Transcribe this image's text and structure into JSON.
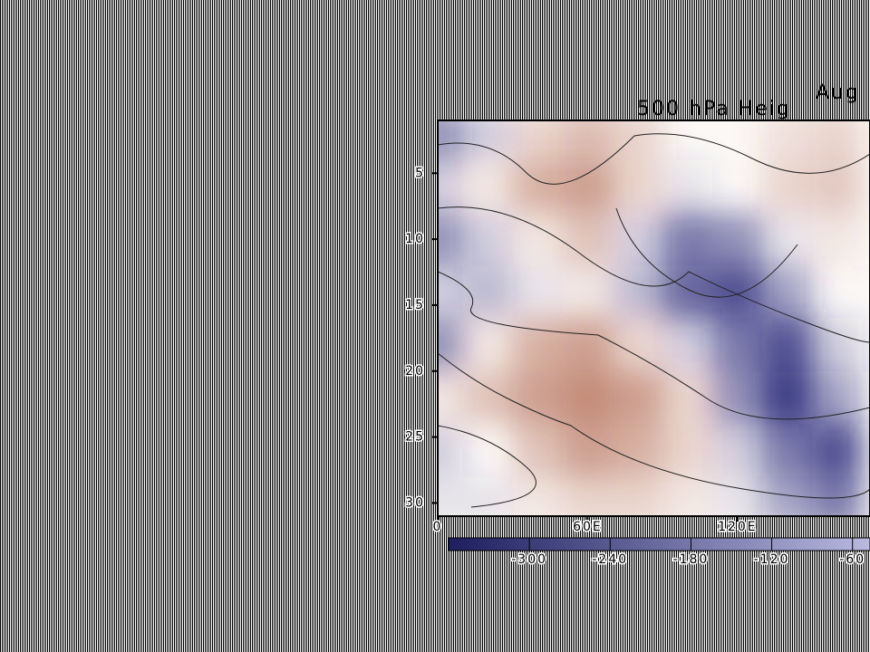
{
  "chart_data": {
    "type": "heatmap",
    "title": "Aug",
    "subtitle": "500 hPa Heig",
    "x": [
      0,
      20,
      40,
      60,
      80,
      100,
      120,
      140,
      160
    ],
    "y": [
      2,
      6,
      10,
      14,
      18,
      22,
      26,
      30
    ],
    "z": [
      [
        -150,
        -60,
        60,
        100,
        60,
        0,
        0,
        40,
        60
      ],
      [
        -60,
        30,
        120,
        150,
        60,
        -30,
        0,
        60,
        80
      ],
      [
        -150,
        -60,
        30,
        90,
        -60,
        -180,
        -150,
        -30,
        30
      ],
      [
        -60,
        -90,
        -30,
        30,
        -90,
        -210,
        -240,
        -120,
        0
      ],
      [
        -150,
        30,
        120,
        150,
        60,
        -60,
        -180,
        -240,
        -60
      ],
      [
        30,
        90,
        150,
        180,
        150,
        60,
        -150,
        -270,
        -120
      ],
      [
        -60,
        0,
        90,
        150,
        120,
        60,
        -60,
        -180,
        -240
      ],
      [
        -30,
        -30,
        30,
        60,
        60,
        30,
        -30,
        -120,
        -180
      ]
    ],
    "xlim": [
      0,
      173
    ],
    "ylim": [
      1,
      31
    ],
    "y_inverted": true,
    "xticks": [
      0,
      {
        "value": 60,
        "label": "60E"
      },
      {
        "value": 120,
        "label": "120E"
      }
    ],
    "yticks": [
      5,
      10,
      15,
      20,
      25,
      30
    ],
    "colors": {
      "negative": "#28287a",
      "positive": "#a04628"
    },
    "colorbar": {
      "lim": [
        -360,
        -47
      ],
      "ticks": [
        -300,
        -240,
        -180,
        -120,
        -60
      ]
    }
  }
}
